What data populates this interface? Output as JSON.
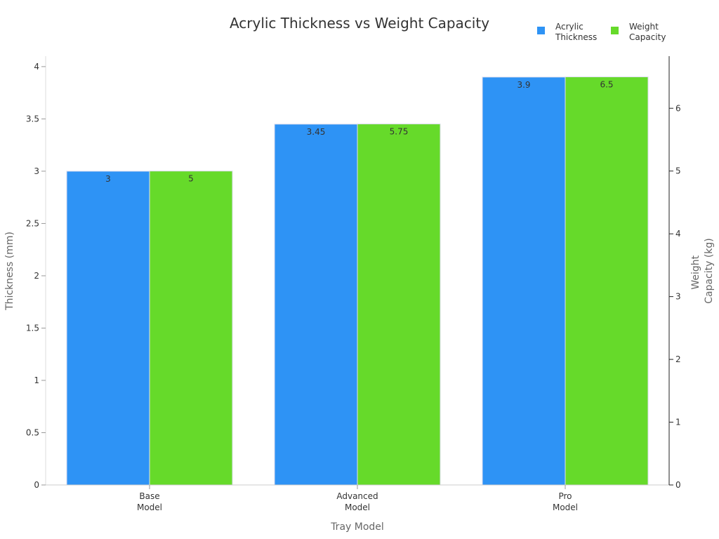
{
  "chart_data": {
    "type": "bar",
    "title": "Acrylic Thickness vs Weight Capacity",
    "xlabel": "Tray Model",
    "ylabel": "Thickness (mm)",
    "y2label": [
      "Weight",
      "Capacity (kg)"
    ],
    "categories": [
      [
        "Base",
        "Model"
      ],
      [
        "Advanced",
        "Model"
      ],
      [
        "Pro",
        "Model"
      ]
    ],
    "series": [
      {
        "name": [
          "Acrylic",
          "Thickness"
        ],
        "axis": "left",
        "values": [
          3,
          3.45,
          3.9
        ],
        "labels": [
          "3",
          "3.45",
          "3.9"
        ],
        "color": "#2E93F5"
      },
      {
        "name": [
          "Weight",
          "Capacity"
        ],
        "axis": "right",
        "values": [
          5,
          5.75,
          6.5
        ],
        "labels": [
          "5",
          "5.75",
          "6.5"
        ],
        "color": "#66DA2A"
      }
    ],
    "ylim": [
      0,
      4.1
    ],
    "y2lim": [
      0,
      6.83
    ],
    "yticks": [
      "0",
      "0.5",
      "1",
      "1.5",
      "2",
      "2.5",
      "3",
      "3.5",
      "4"
    ],
    "y2ticks": [
      "0",
      "1",
      "2",
      "3",
      "4",
      "5",
      "6"
    ],
    "grid": false,
    "legend": "top-right"
  }
}
